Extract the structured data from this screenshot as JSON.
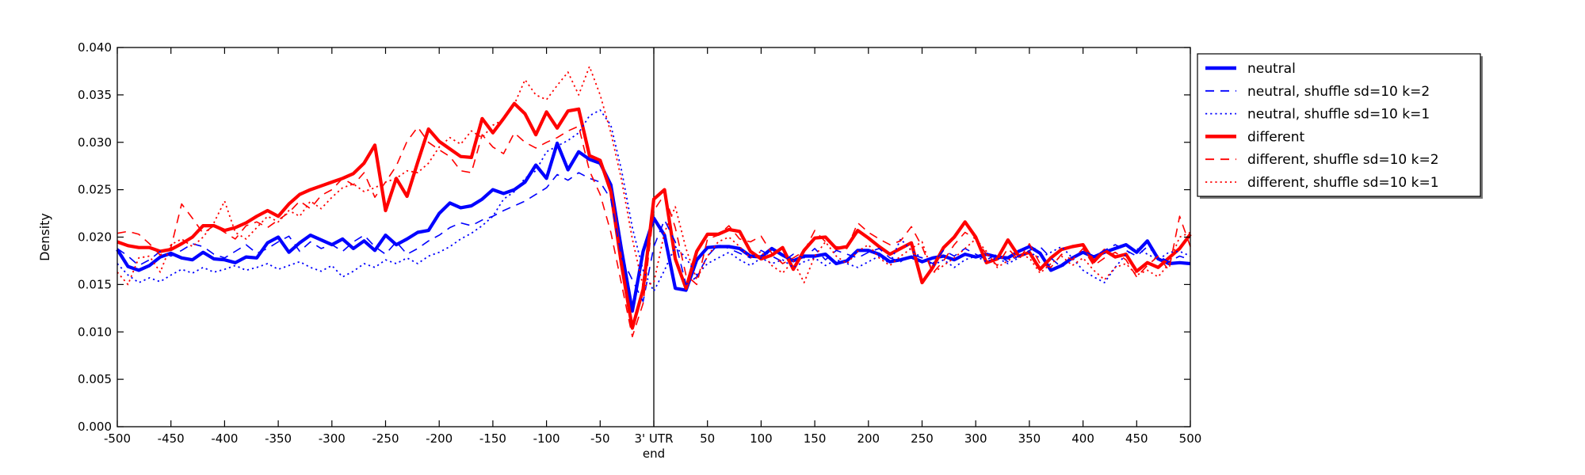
{
  "figure": {
    "background": "#ffffff",
    "accent_colors": {
      "neutral": "#0000ff",
      "different": "#ff0000",
      "axis": "#000000"
    }
  },
  "chart_data": {
    "type": "line",
    "title": "",
    "xlabel": "end",
    "ylabel": "Density",
    "xlim": [
      -500,
      500
    ],
    "ylim": [
      0.0,
      0.04
    ],
    "grid": false,
    "legend_position": "outside-upper-right",
    "x_tick_values": [
      -500,
      -450,
      -400,
      -350,
      -300,
      -250,
      -200,
      -150,
      -100,
      -50,
      0,
      50,
      100,
      150,
      200,
      250,
      300,
      350,
      400,
      450,
      500
    ],
    "x_tick_labels": [
      "-500",
      "-450",
      "-400",
      "-350",
      "-300",
      "-250",
      "-200",
      "-150",
      "-100",
      "-50",
      "3' UTR",
      "50",
      "100",
      "150",
      "200",
      "250",
      "300",
      "350",
      "400",
      "450",
      "500"
    ],
    "y_tick_values": [
      0.0,
      0.005,
      0.01,
      0.015,
      0.02,
      0.025,
      0.03,
      0.035,
      0.04
    ],
    "y_tick_labels": [
      "0.000",
      "0.005",
      "0.010",
      "0.015",
      "0.020",
      "0.025",
      "0.030",
      "0.035",
      "0.040"
    ],
    "annotations": [
      {
        "type": "vline",
        "x": 0,
        "color": "#000000"
      }
    ],
    "x_start": -500,
    "x_step": 10,
    "series": [
      {
        "name": "neutral",
        "color": "#0000ff",
        "style": "solid",
        "width": 4.2,
        "values": [
          0.0187,
          0.0169,
          0.0165,
          0.017,
          0.0179,
          0.0183,
          0.0178,
          0.0176,
          0.0184,
          0.0177,
          0.0176,
          0.0173,
          0.0179,
          0.0178,
          0.0194,
          0.02,
          0.0184,
          0.0194,
          0.0202,
          0.0197,
          0.0192,
          0.0198,
          0.0188,
          0.0196,
          0.0186,
          0.0202,
          0.0192,
          0.0198,
          0.0205,
          0.0207,
          0.0225,
          0.0236,
          0.0231,
          0.0233,
          0.024,
          0.025,
          0.0246,
          0.025,
          0.0258,
          0.0276,
          0.0262,
          0.0299,
          0.0271,
          0.029,
          0.0282,
          0.0278,
          0.0255,
          0.0186,
          0.0122,
          0.0185,
          0.022,
          0.0202,
          0.0146,
          0.0144,
          0.0176,
          0.0189,
          0.019,
          0.019,
          0.0188,
          0.018,
          0.0179,
          0.0188,
          0.0181,
          0.0175,
          0.018,
          0.018,
          0.0182,
          0.0172,
          0.0175,
          0.0186,
          0.0186,
          0.0182,
          0.0174,
          0.0176,
          0.0179,
          0.0174,
          0.0178,
          0.018,
          0.0176,
          0.0182,
          0.0179,
          0.0182,
          0.0179,
          0.0178,
          0.0185,
          0.019,
          0.0183,
          0.0165,
          0.017,
          0.0178,
          0.0184,
          0.0179,
          0.0184,
          0.0188,
          0.0192,
          0.0184,
          0.0196,
          0.0177,
          0.0172,
          0.0173,
          0.0172
        ]
      },
      {
        "name": "neutral, shuffle sd=10 k=2",
        "color": "#0000ff",
        "style": "dashed",
        "width": 1.6,
        "values": [
          0.0188,
          0.018,
          0.017,
          0.0176,
          0.0185,
          0.018,
          0.0186,
          0.0193,
          0.019,
          0.0182,
          0.0178,
          0.0185,
          0.0192,
          0.0183,
          0.0188,
          0.0195,
          0.0201,
          0.0185,
          0.0195,
          0.0188,
          0.0192,
          0.0185,
          0.0195,
          0.0202,
          0.019,
          0.0182,
          0.0195,
          0.0182,
          0.0188,
          0.0196,
          0.0202,
          0.021,
          0.0215,
          0.0212,
          0.0218,
          0.0222,
          0.0228,
          0.0233,
          0.0238,
          0.0245,
          0.0252,
          0.0266,
          0.026,
          0.0268,
          0.0262,
          0.0258,
          0.024,
          0.0178,
          0.0155,
          0.0132,
          0.019,
          0.0218,
          0.0195,
          0.015,
          0.0158,
          0.018,
          0.0192,
          0.0188,
          0.0183,
          0.0178,
          0.0186,
          0.018,
          0.0174,
          0.0182,
          0.0178,
          0.0188,
          0.0176,
          0.0186,
          0.0182,
          0.0178,
          0.0184,
          0.0188,
          0.0178,
          0.0174,
          0.0182,
          0.0178,
          0.0172,
          0.0186,
          0.018,
          0.0188,
          0.0182,
          0.0176,
          0.0182,
          0.0174,
          0.018,
          0.0186,
          0.019,
          0.0178,
          0.0168,
          0.0178,
          0.0186,
          0.018,
          0.0186,
          0.0192,
          0.0186,
          0.018,
          0.019,
          0.018,
          0.0174,
          0.018,
          0.0176
        ]
      },
      {
        "name": "neutral, shuffle sd=10 k=1",
        "color": "#0000ff",
        "style": "dotted",
        "width": 1.8,
        "values": [
          0.0172,
          0.016,
          0.0152,
          0.0157,
          0.0153,
          0.016,
          0.0166,
          0.0162,
          0.0168,
          0.0163,
          0.0166,
          0.017,
          0.0165,
          0.0168,
          0.0172,
          0.0166,
          0.017,
          0.0174,
          0.0168,
          0.0164,
          0.017,
          0.0158,
          0.0164,
          0.0172,
          0.0168,
          0.0176,
          0.0172,
          0.0178,
          0.0172,
          0.018,
          0.0184,
          0.019,
          0.0198,
          0.0204,
          0.0212,
          0.0222,
          0.024,
          0.0248,
          0.0262,
          0.027,
          0.029,
          0.0296,
          0.0302,
          0.031,
          0.0328,
          0.0334,
          0.0318,
          0.027,
          0.021,
          0.0165,
          0.0143,
          0.0165,
          0.019,
          0.0178,
          0.016,
          0.0172,
          0.0178,
          0.0184,
          0.0176,
          0.017,
          0.0178,
          0.0172,
          0.0176,
          0.0168,
          0.0174,
          0.0178,
          0.017,
          0.0176,
          0.0172,
          0.0168,
          0.0174,
          0.018,
          0.0172,
          0.0198,
          0.0186,
          0.0178,
          0.017,
          0.0176,
          0.0168,
          0.0176,
          0.018,
          0.0174,
          0.0178,
          0.0172,
          0.0178,
          0.0184,
          0.0178,
          0.0184,
          0.019,
          0.0178,
          0.0165,
          0.0158,
          0.0152,
          0.0168,
          0.0182,
          0.0188,
          0.0182,
          0.0176,
          0.0184,
          0.0185,
          0.018
        ]
      },
      {
        "name": "different",
        "color": "#ff0000",
        "style": "solid",
        "width": 4.2,
        "values": [
          0.0195,
          0.0191,
          0.0189,
          0.0189,
          0.0185,
          0.0187,
          0.0193,
          0.02,
          0.0212,
          0.0212,
          0.0207,
          0.021,
          0.0215,
          0.0222,
          0.0228,
          0.0222,
          0.0235,
          0.0245,
          0.025,
          0.0254,
          0.0258,
          0.0262,
          0.0267,
          0.0278,
          0.0297,
          0.0228,
          0.0262,
          0.0243,
          0.0279,
          0.0314,
          0.0301,
          0.0293,
          0.0285,
          0.0284,
          0.0325,
          0.031,
          0.0325,
          0.0341,
          0.033,
          0.0308,
          0.0332,
          0.0315,
          0.0333,
          0.0335,
          0.0286,
          0.0281,
          0.0248,
          0.017,
          0.0104,
          0.0145,
          0.024,
          0.025,
          0.0177,
          0.0146,
          0.0185,
          0.0203,
          0.0203,
          0.0208,
          0.0206,
          0.0185,
          0.0177,
          0.0181,
          0.0189,
          0.0166,
          0.0186,
          0.0199,
          0.02,
          0.0188,
          0.019,
          0.0207,
          0.0199,
          0.019,
          0.0182,
          0.0188,
          0.0194,
          0.0152,
          0.0168,
          0.0189,
          0.02,
          0.0216,
          0.02,
          0.0173,
          0.0177,
          0.0197,
          0.018,
          0.0184,
          0.0166,
          0.0178,
          0.0187,
          0.019,
          0.0192,
          0.0174,
          0.0186,
          0.0179,
          0.0182,
          0.0164,
          0.0173,
          0.0168,
          0.0178,
          0.0188,
          0.0203
        ]
      },
      {
        "name": "different, shuffle sd=10 k=2",
        "color": "#ff0000",
        "style": "dashed",
        "width": 1.6,
        "values": [
          0.0204,
          0.0206,
          0.0203,
          0.0193,
          0.0181,
          0.0189,
          0.0235,
          0.022,
          0.0204,
          0.0212,
          0.0205,
          0.0198,
          0.0212,
          0.0216,
          0.021,
          0.0218,
          0.0226,
          0.0238,
          0.023,
          0.0244,
          0.025,
          0.0262,
          0.0255,
          0.0268,
          0.0242,
          0.0258,
          0.0275,
          0.0301,
          0.0316,
          0.03,
          0.0292,
          0.0285,
          0.027,
          0.0268,
          0.0308,
          0.0295,
          0.0288,
          0.031,
          0.03,
          0.0294,
          0.03,
          0.0305,
          0.0312,
          0.0317,
          0.027,
          0.0245,
          0.0205,
          0.015,
          0.0095,
          0.013,
          0.0228,
          0.0245,
          0.021,
          0.016,
          0.015,
          0.0198,
          0.0202,
          0.0212,
          0.0198,
          0.0195,
          0.0201,
          0.0183,
          0.0172,
          0.0178,
          0.0185,
          0.0207,
          0.0195,
          0.019,
          0.0188,
          0.0215,
          0.0205,
          0.0198,
          0.0192,
          0.0196,
          0.0211,
          0.019,
          0.0162,
          0.0175,
          0.0192,
          0.0205,
          0.0198,
          0.0182,
          0.017,
          0.0188,
          0.0176,
          0.0193,
          0.0172,
          0.0168,
          0.0182,
          0.0176,
          0.0188,
          0.017,
          0.0178,
          0.0184,
          0.0176,
          0.0158,
          0.017,
          0.018,
          0.0165,
          0.0222,
          0.019
        ]
      },
      {
        "name": "different, shuffle sd=10 k=1",
        "color": "#ff0000",
        "style": "dotted",
        "width": 1.8,
        "values": [
          0.0163,
          0.015,
          0.0178,
          0.018,
          0.0163,
          0.0192,
          0.0198,
          0.019,
          0.02,
          0.0215,
          0.0238,
          0.0205,
          0.0198,
          0.021,
          0.0222,
          0.0216,
          0.0228,
          0.0222,
          0.0238,
          0.023,
          0.0242,
          0.0252,
          0.0256,
          0.0248,
          0.0252,
          0.0258,
          0.0262,
          0.027,
          0.0268,
          0.0278,
          0.0295,
          0.0305,
          0.0298,
          0.0312,
          0.0305,
          0.0318,
          0.0324,
          0.034,
          0.0366,
          0.035,
          0.0345,
          0.036,
          0.0374,
          0.035,
          0.038,
          0.035,
          0.031,
          0.026,
          0.0198,
          0.0148,
          0.0152,
          0.0205,
          0.0232,
          0.0188,
          0.0155,
          0.018,
          0.0195,
          0.02,
          0.019,
          0.0178,
          0.0185,
          0.017,
          0.0162,
          0.0175,
          0.0152,
          0.018,
          0.0195,
          0.018,
          0.0172,
          0.0185,
          0.0192,
          0.0178,
          0.017,
          0.018,
          0.0188,
          0.0195,
          0.0162,
          0.017,
          0.0178,
          0.0188,
          0.0198,
          0.0185,
          0.0168,
          0.0175,
          0.0182,
          0.0178,
          0.0162,
          0.0172,
          0.018,
          0.017,
          0.0178,
          0.0165,
          0.0155,
          0.0168,
          0.0172,
          0.016,
          0.0165,
          0.0158,
          0.0172,
          0.02,
          0.0205
        ]
      }
    ]
  },
  "legend": {
    "border_color": "#000000",
    "background": "#ffffff"
  }
}
